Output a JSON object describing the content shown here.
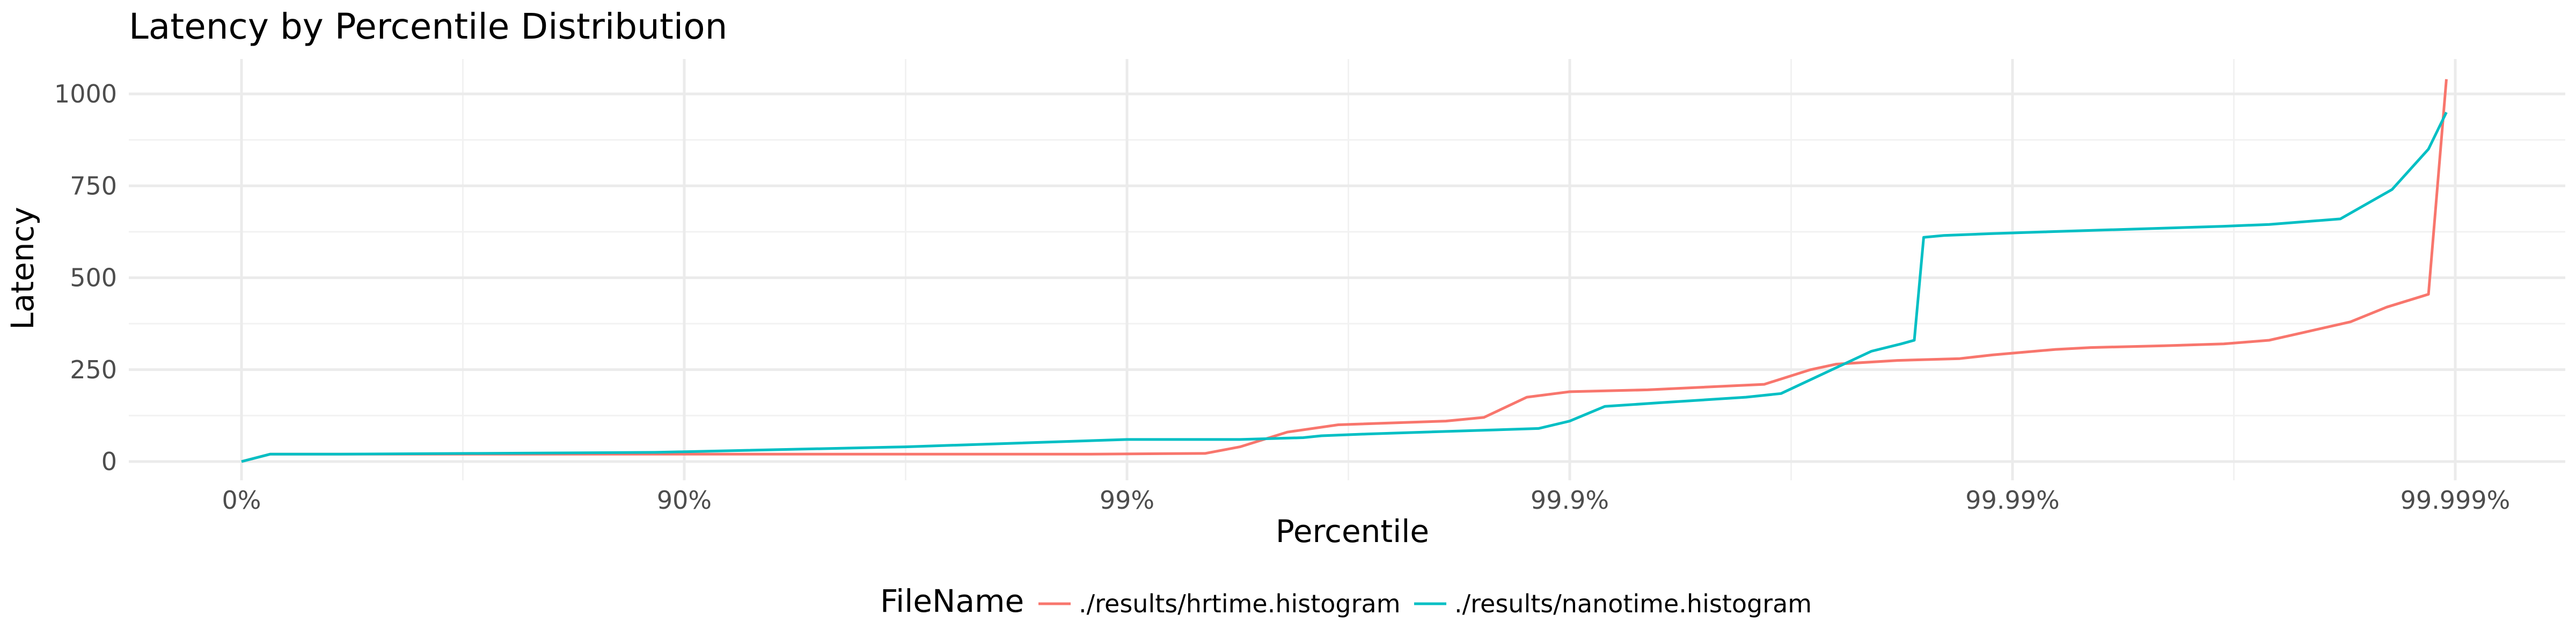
{
  "chart_data": {
    "type": "line",
    "title": "Latency by Percentile Distribution",
    "xlabel": "Percentile",
    "ylabel": "Latency",
    "x_scale": "log-nines (1/(1-p))",
    "x_ticks": [
      {
        "label": "0%",
        "value": 1
      },
      {
        "label": "90%",
        "value": 10
      },
      {
        "label": "99%",
        "value": 100
      },
      {
        "label": "99.9%",
        "value": 1000
      },
      {
        "label": "99.99%",
        "value": 10000
      },
      {
        "label": "99.999%",
        "value": 100000
      }
    ],
    "y_ticks": [
      0,
      250,
      500,
      750,
      1000
    ],
    "xlim": [
      1,
      100000
    ],
    "ylim": [
      0,
      1050
    ],
    "grid": true,
    "legend": {
      "title": "FileName",
      "position": "bottom"
    },
    "series": [
      {
        "name": "./results/hrtime.histogram",
        "color": "#F8766D",
        "points": [
          [
            1,
            0
          ],
          [
            1.16,
            20
          ],
          [
            1.6,
            20
          ],
          [
            3.3,
            20
          ],
          [
            8.6,
            20
          ],
          [
            31.6,
            20
          ],
          [
            80,
            20
          ],
          [
            150,
            22
          ],
          [
            180,
            40
          ],
          [
            230,
            80
          ],
          [
            300,
            100
          ],
          [
            525,
            110
          ],
          [
            640,
            120
          ],
          [
            800,
            175
          ],
          [
            1000,
            190
          ],
          [
            1500,
            195
          ],
          [
            2750,
            210
          ],
          [
            3500,
            250
          ],
          [
            4000,
            265
          ],
          [
            5500,
            275
          ],
          [
            7600,
            280
          ],
          [
            9000,
            290
          ],
          [
            12500,
            305
          ],
          [
            15000,
            310
          ],
          [
            22000,
            315
          ],
          [
            30000,
            320
          ],
          [
            38000,
            330
          ],
          [
            45000,
            350
          ],
          [
            58000,
            380
          ],
          [
            70000,
            420
          ],
          [
            87000,
            455
          ],
          [
            95500,
            1040
          ]
        ]
      },
      {
        "name": "./results/nanotime.histogram",
        "color": "#00BFC4",
        "points": [
          [
            1,
            0
          ],
          [
            1.16,
            20
          ],
          [
            1.6,
            20
          ],
          [
            3.3,
            22
          ],
          [
            8.6,
            25
          ],
          [
            31.6,
            40
          ],
          [
            100,
            60
          ],
          [
            180,
            60
          ],
          [
            250,
            65
          ],
          [
            275,
            70
          ],
          [
            350,
            75
          ],
          [
            850,
            90
          ],
          [
            1000,
            110
          ],
          [
            1200,
            150
          ],
          [
            1600,
            160
          ],
          [
            2500,
            175
          ],
          [
            3000,
            185
          ],
          [
            4800,
            300
          ],
          [
            5600,
            320
          ],
          [
            6000,
            330
          ],
          [
            6300,
            610
          ],
          [
            7000,
            615
          ],
          [
            9000,
            620
          ],
          [
            12000,
            625
          ],
          [
            30000,
            640
          ],
          [
            38000,
            645
          ],
          [
            55000,
            660
          ],
          [
            72000,
            740
          ],
          [
            87000,
            850
          ],
          [
            95500,
            950
          ]
        ]
      }
    ]
  }
}
